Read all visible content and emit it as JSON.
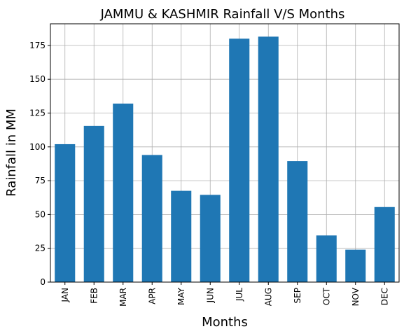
{
  "chart_data": {
    "type": "bar",
    "title": "JAMMU & KASHMIR Rainfall V/S Months",
    "xlabel": "Months",
    "ylabel": "Rainfall in MM",
    "categories": [
      "JAN",
      "FEB",
      "MAR",
      "APR",
      "MAY",
      "JUN",
      "JUL",
      "AUG",
      "SEP",
      "OCT",
      "NOV",
      "DEC"
    ],
    "values": [
      102,
      115.5,
      132,
      94,
      67.5,
      64.5,
      180,
      181.5,
      89.5,
      34.5,
      24,
      55.5
    ],
    "ylim": [
      0,
      191
    ],
    "yticks": [
      "0",
      "25",
      "50",
      "75",
      "100",
      "125",
      "150",
      "175"
    ],
    "grid": true,
    "bar_color": "#1f77b4"
  }
}
